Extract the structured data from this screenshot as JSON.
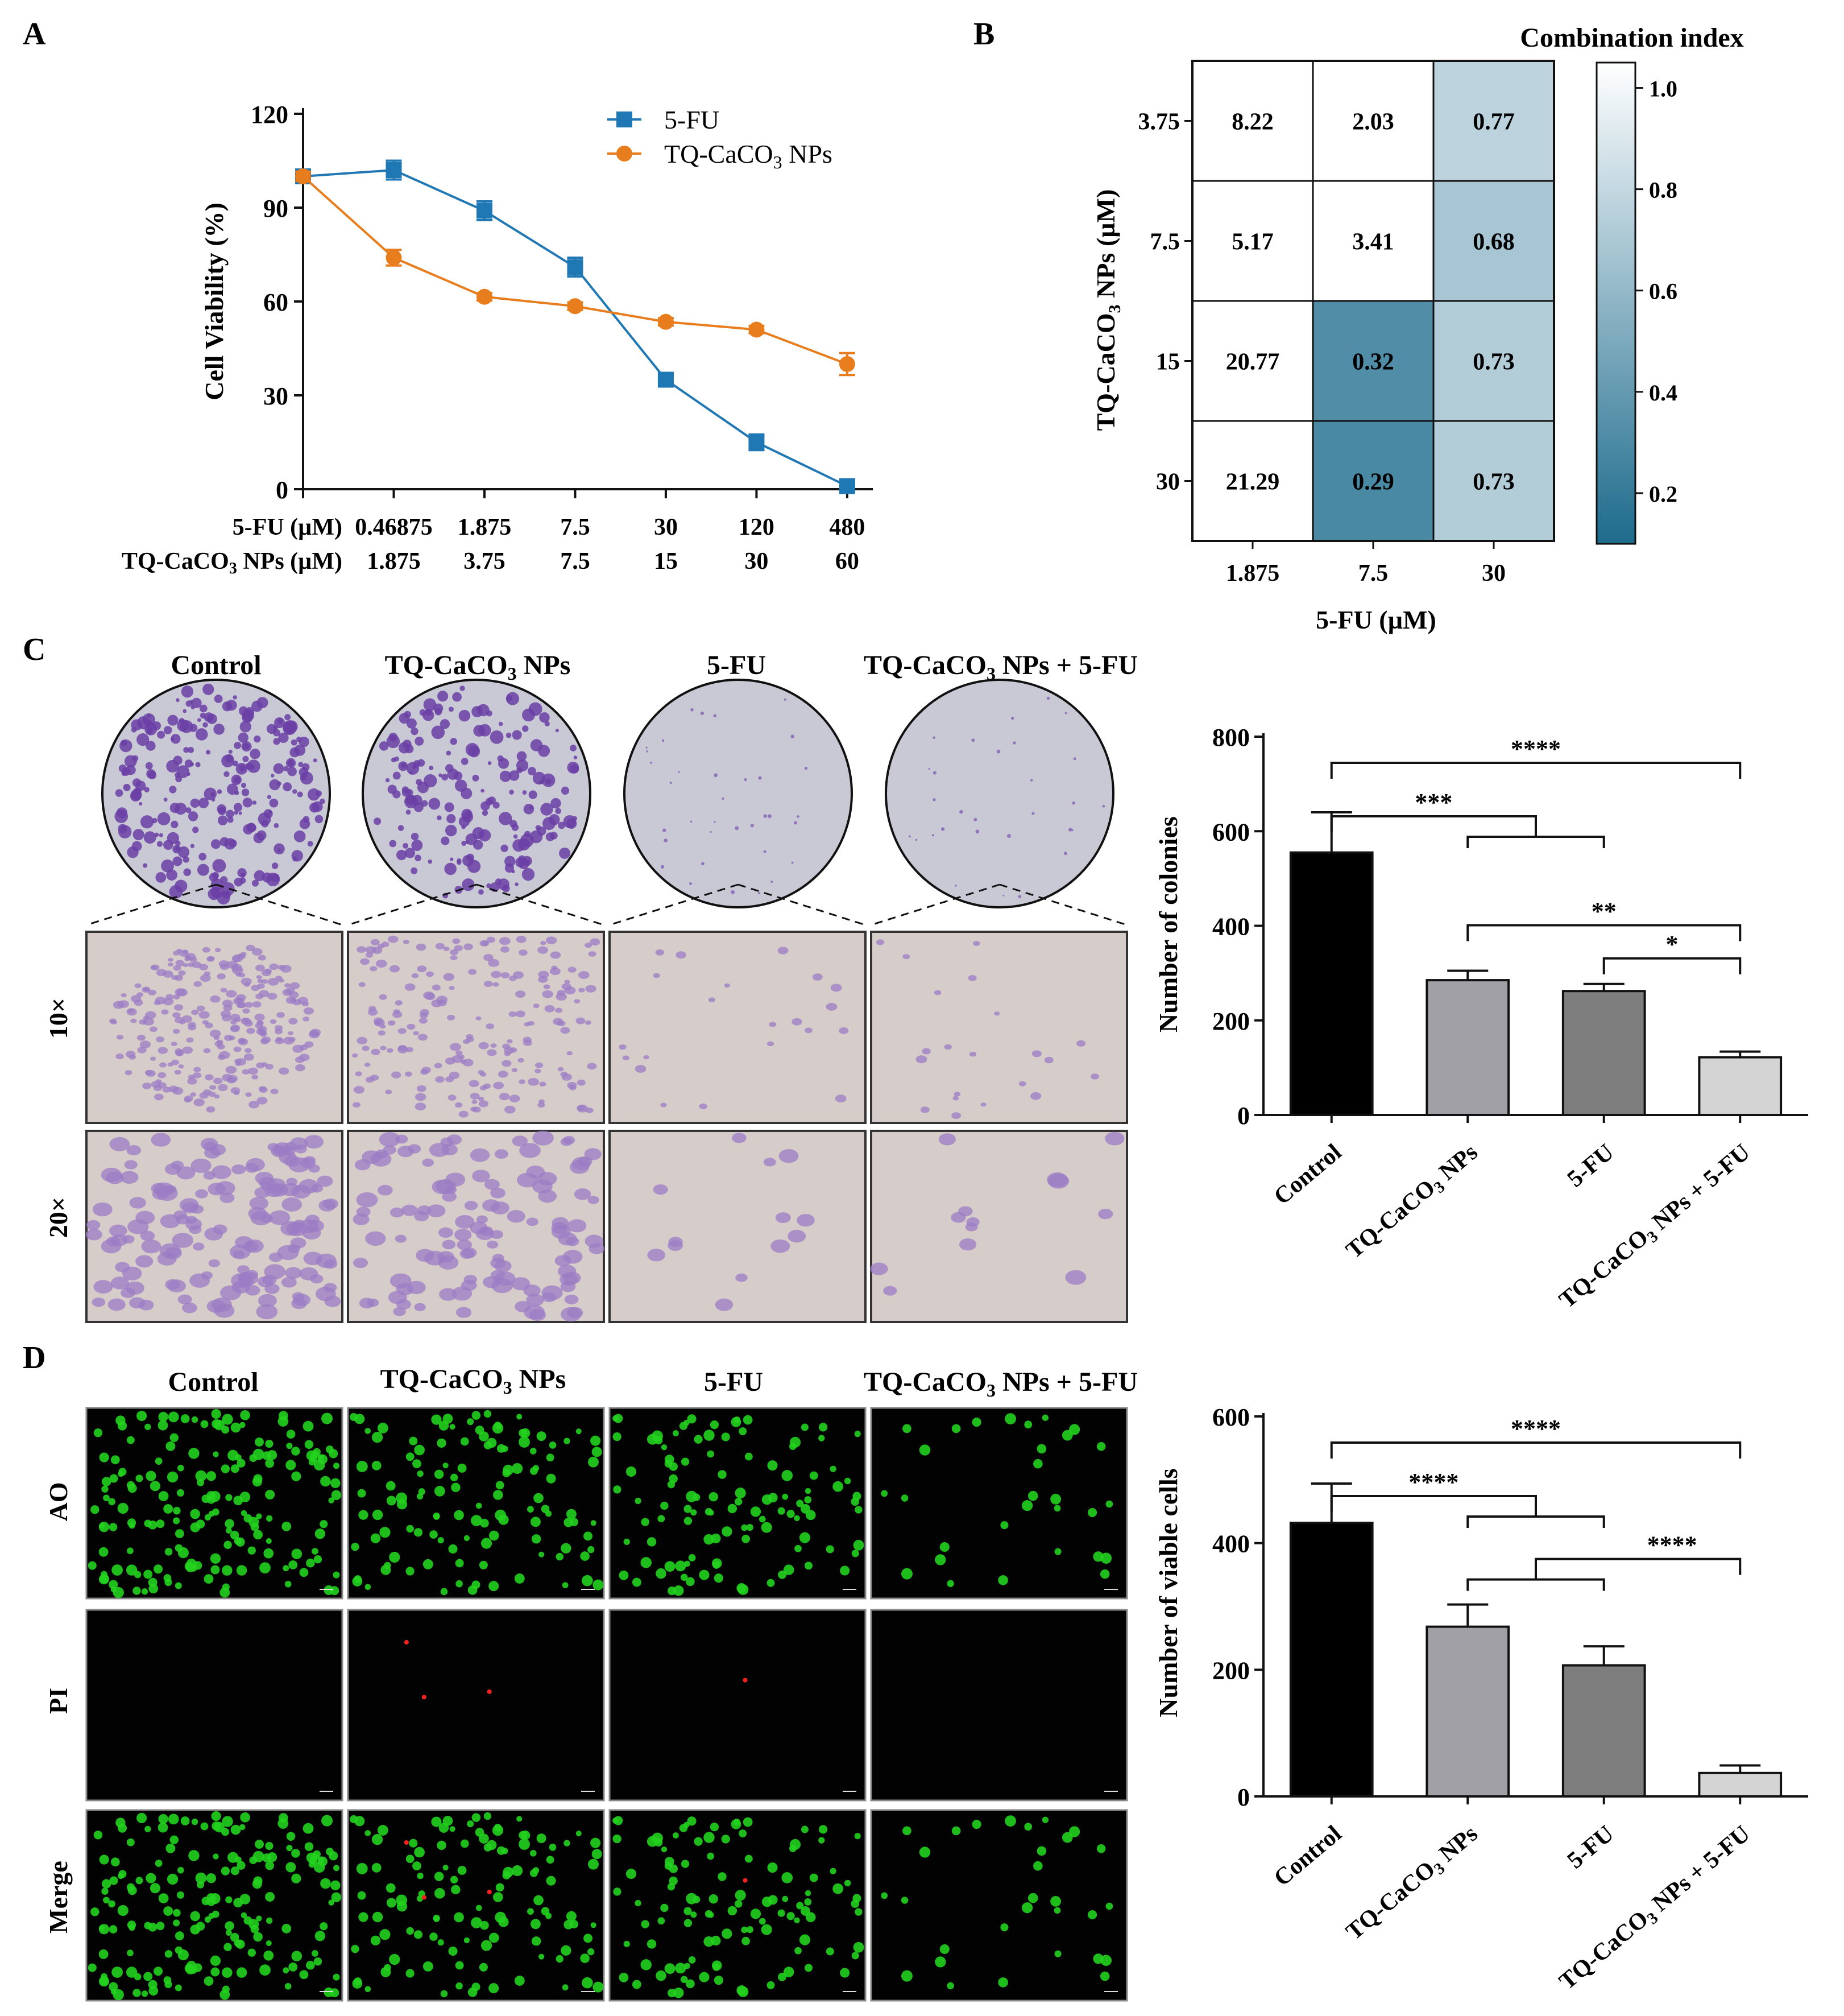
{
  "panel_labels": [
    "A",
    "B",
    "C",
    "D"
  ],
  "chart_data": [
    {
      "id": "A",
      "type": "line",
      "xlabel_rows": [
        {
          "label": "5-FU (µM)",
          "ticks": [
            "0.46875",
            "1.875",
            "7.5",
            "30",
            "120",
            "480"
          ]
        },
        {
          "label": "TQ-CaCO₃ NPs (µM)",
          "ticks": [
            "1.875",
            "3.75",
            "7.5",
            "15",
            "30",
            "60"
          ]
        }
      ],
      "ylabel": "Cell Viability (%)",
      "ylim": [
        0,
        120
      ],
      "yticks": [
        0,
        30,
        60,
        90,
        120
      ],
      "legend_position": "top-right",
      "grid": false,
      "series": [
        {
          "name": "5-FU",
          "color": "#1f77b4",
          "marker": "square",
          "x": [
            0,
            1,
            2,
            3,
            4,
            5,
            6
          ],
          "values": [
            100,
            102,
            89,
            71,
            35,
            15,
            1
          ],
          "errors": [
            2,
            3,
            3,
            3,
            1.5,
            2.5,
            1
          ]
        },
        {
          "name": "TQ-CaCO₃ NPs",
          "color": "#e87d1e",
          "marker": "circle",
          "x": [
            0,
            1,
            2,
            3,
            4,
            5,
            6
          ],
          "values": [
            100,
            74,
            61.5,
            58.5,
            53.5,
            51,
            40
          ],
          "errors": [
            1.5,
            2.5,
            1.2,
            1.2,
            1.2,
            1.2,
            3.5
          ]
        }
      ]
    },
    {
      "id": "B",
      "type": "heatmap",
      "title": "Combination index",
      "xlabel": "5-FU (µM)",
      "ylabel": "TQ-CaCO₃ NPs (µM)",
      "x_ticks": [
        "1.875",
        "7.5",
        "30"
      ],
      "y_ticks": [
        "3.75",
        "7.5",
        "15",
        "30"
      ],
      "values": [
        [
          8.22,
          2.03,
          0.77
        ],
        [
          5.17,
          3.41,
          0.68
        ],
        [
          20.77,
          0.32,
          0.73
        ],
        [
          21.29,
          0.29,
          0.73
        ]
      ],
      "labels": [
        [
          "8.22",
          "2.03",
          "0.77"
        ],
        [
          "5.17",
          "3.41",
          "0.68"
        ],
        [
          "20.77",
          "0.32",
          "0.73"
        ],
        [
          "21.29",
          "0.29",
          "0.73"
        ]
      ],
      "colorbar": {
        "min": 0.1,
        "max": 1.05,
        "ticks": [
          "1.0",
          "0.8",
          "0.6",
          "0.4",
          "0.2"
        ],
        "tick_values": [
          1.0,
          0.8,
          0.6,
          0.4,
          0.2
        ],
        "color_low": "#1d6b8c",
        "color_high": "#ffffff"
      }
    },
    {
      "id": "C",
      "type": "bar",
      "categories": [
        "Control",
        "TQ-CaCO₃ NPs",
        "5-FU",
        "TQ-CaCO₃ NPs + 5-FU"
      ],
      "values": [
        555,
        285,
        262,
        122
      ],
      "errors": [
        85,
        20,
        15,
        12
      ],
      "colors": [
        "#000000",
        "#a0a0a6",
        "#7d7d7d",
        "#d4d4d4"
      ],
      "ylabel": "Number of colonies",
      "ylim": [
        0,
        800
      ],
      "yticks": [
        0,
        200,
        400,
        600,
        800
      ],
      "significance": [
        {
          "from": 0,
          "to": [
            3
          ],
          "label": "****"
        },
        {
          "from": 0,
          "to": [
            1,
            2
          ],
          "label": "***"
        },
        {
          "from": 1,
          "to": [
            3
          ],
          "label": "**"
        },
        {
          "from": 2,
          "to": [
            3
          ],
          "label": "*"
        }
      ]
    },
    {
      "id": "D",
      "type": "bar",
      "categories": [
        "Control",
        "TQ-CaCO₃ NPs",
        "5-FU",
        "TQ-CaCO₃ NPs + 5-FU"
      ],
      "values": [
        432,
        268,
        207,
        37
      ],
      "errors": [
        62,
        35,
        30,
        12
      ],
      "colors": [
        "#000000",
        "#a0a0a6",
        "#7d7d7d",
        "#d4d4d4"
      ],
      "ylabel": "Number of viable cells",
      "ylim": [
        0,
        600
      ],
      "yticks": [
        0,
        200,
        400,
        600
      ],
      "significance": [
        {
          "from": 0,
          "to": [
            3
          ],
          "label": "****"
        },
        {
          "from": 0,
          "to": [
            1,
            2
          ],
          "label": "****"
        },
        {
          "from": [
            1,
            2
          ],
          "to": [
            3
          ],
          "label": "****"
        }
      ]
    }
  ],
  "panelC": {
    "groups": [
      "Control",
      "TQ-CaCO₃ NPs",
      "5-FU",
      "TQ-CaCO₃ NPs + 5-FU"
    ],
    "rows": [
      "10×",
      "20×"
    ],
    "colony_density": [
      1.0,
      0.75,
      0.05,
      0.02
    ],
    "stain_color": "#6b3fa6"
  },
  "panelD": {
    "groups": [
      "Control",
      "TQ-CaCO₃ NPs",
      "5-FU",
      "TQ-CaCO₃ NPs + 5-FU"
    ],
    "rows": [
      "AO",
      "PI",
      "Merge"
    ],
    "green_cell_counts": [
      180,
      120,
      110,
      30
    ],
    "red_cell_counts": [
      0,
      3,
      1,
      0
    ],
    "ao_color": "#22d11e",
    "pi_color": "#ff2020"
  }
}
